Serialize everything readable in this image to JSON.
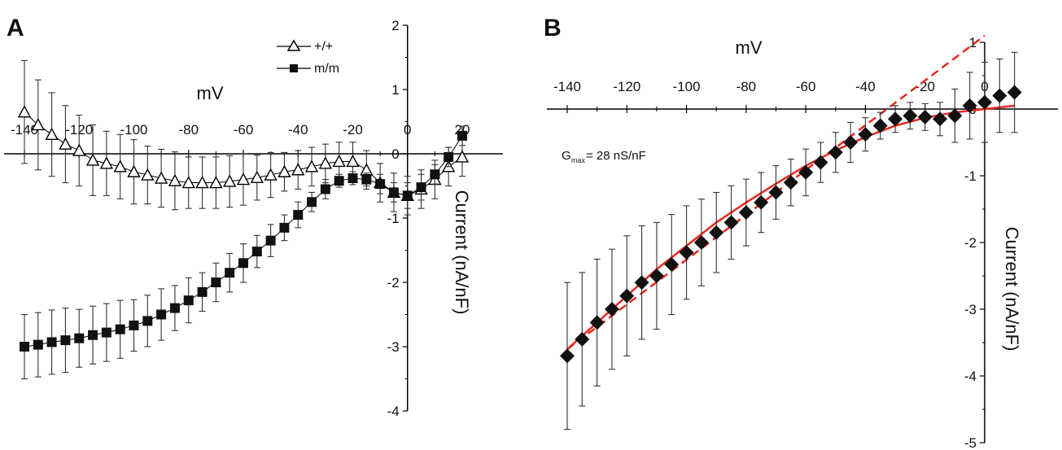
{
  "chart_data": [
    {
      "panel_label": "A",
      "type": "scatter",
      "xlabel": "mV",
      "ylabel": "Current (nA/nF)",
      "xlim": [
        -145,
        25
      ],
      "ylim": [
        -4,
        2
      ],
      "x_ticks": [
        -140,
        -120,
        -100,
        -80,
        -60,
        -40,
        -20,
        0,
        20
      ],
      "x_tick_labels": [
        "-140",
        "-120",
        "-100",
        "-80",
        "-60",
        "-40",
        "-20",
        "0",
        "20"
      ],
      "y_ticks": [
        -4,
        -3,
        -2,
        -1,
        0,
        1,
        2
      ],
      "y_tick_labels": [
        "-4",
        "-3",
        "-2",
        "-1",
        "0",
        "1",
        "2"
      ],
      "legend": "top-center",
      "grid": false,
      "series": [
        {
          "name": "+/+",
          "marker": "open-triangle",
          "color": "#000000",
          "x": [
            -140,
            -135,
            -130,
            -125,
            -120,
            -115,
            -110,
            -105,
            -100,
            -95,
            -90,
            -85,
            -80,
            -75,
            -70,
            -65,
            -60,
            -55,
            -50,
            -45,
            -40,
            -35,
            -30,
            -25,
            -20,
            -15,
            -10,
            -5,
            0,
            5,
            10,
            15,
            20
          ],
          "y": [
            0.65,
            0.45,
            0.3,
            0.15,
            0.05,
            -0.1,
            -0.15,
            -0.2,
            -0.28,
            -0.33,
            -0.38,
            -0.42,
            -0.45,
            -0.45,
            -0.45,
            -0.43,
            -0.4,
            -0.37,
            -0.33,
            -0.28,
            -0.25,
            -0.2,
            -0.15,
            -0.12,
            -0.12,
            -0.25,
            -0.45,
            -0.6,
            -0.65,
            -0.55,
            -0.4,
            -0.2,
            -0.05
          ],
          "err": [
            0.8,
            0.7,
            0.65,
            0.6,
            0.55,
            0.55,
            0.5,
            0.5,
            0.5,
            0.45,
            0.45,
            0.45,
            0.4,
            0.4,
            0.4,
            0.4,
            0.4,
            0.35,
            0.35,
            0.3,
            0.3,
            0.3,
            0.3,
            0.3,
            0.3,
            0.3,
            0.3,
            0.3,
            0.3,
            0.3,
            0.3,
            0.3,
            0.3
          ]
        },
        {
          "name": "m/m",
          "marker": "filled-square",
          "color": "#000000",
          "x": [
            -140,
            -135,
            -130,
            -125,
            -120,
            -115,
            -110,
            -105,
            -100,
            -95,
            -90,
            -85,
            -80,
            -75,
            -70,
            -65,
            -60,
            -55,
            -50,
            -45,
            -40,
            -35,
            -30,
            -25,
            -20,
            -15,
            -10,
            -5,
            0,
            5,
            10,
            15,
            20
          ],
          "y": [
            -3.0,
            -2.97,
            -2.93,
            -2.9,
            -2.87,
            -2.82,
            -2.78,
            -2.73,
            -2.67,
            -2.6,
            -2.5,
            -2.4,
            -2.28,
            -2.15,
            -2.0,
            -1.85,
            -1.7,
            -1.52,
            -1.35,
            -1.15,
            -0.95,
            -0.75,
            -0.55,
            -0.42,
            -0.38,
            -0.4,
            -0.47,
            -0.6,
            -0.65,
            -0.52,
            -0.32,
            -0.05,
            0.28
          ],
          "err": [
            0.5,
            0.5,
            0.5,
            0.5,
            0.45,
            0.45,
            0.45,
            0.45,
            0.4,
            0.4,
            0.4,
            0.35,
            0.35,
            0.3,
            0.3,
            0.3,
            0.3,
            0.25,
            0.25,
            0.2,
            0.2,
            0.15,
            0.15,
            0.1,
            0.1,
            0.1,
            0.15,
            0.15,
            0.2,
            0.2,
            0.15,
            0.15,
            0.15
          ]
        }
      ]
    },
    {
      "panel_label": "B",
      "type": "scatter",
      "xlabel": "mV",
      "ylabel": "Current (nA/nF)",
      "xlim": [
        -145,
        10
      ],
      "ylim": [
        -5,
        1
      ],
      "x_ticks": [
        -140,
        -120,
        -100,
        -80,
        -60,
        -40,
        -20,
        0
      ],
      "x_tick_labels": [
        "-140",
        "-120",
        "-100",
        "-80",
        "-60",
        "-40",
        "-20",
        "0"
      ],
      "y_ticks": [
        -5,
        -4,
        -3,
        -2,
        -1,
        0,
        1
      ],
      "y_tick_labels": [
        "-5",
        "-4",
        "-3",
        "-2",
        "-1",
        "0",
        "1"
      ],
      "grid": false,
      "annotation": {
        "main": "G",
        "sub": "max",
        "rest": " = 28 nS/nF"
      },
      "series": [
        {
          "marker": "filled-diamond",
          "color": "#000000",
          "x": [
            -140,
            -135,
            -130,
            -125,
            -120,
            -115,
            -110,
            -105,
            -100,
            -95,
            -90,
            -85,
            -80,
            -75,
            -70,
            -65,
            -60,
            -55,
            -50,
            -45,
            -40,
            -35,
            -30,
            -25,
            -20,
            -15,
            -10,
            -5,
            0,
            5,
            10
          ],
          "y": [
            -3.7,
            -3.45,
            -3.2,
            -3.0,
            -2.8,
            -2.6,
            -2.5,
            -2.33,
            -2.15,
            -2.0,
            -1.85,
            -1.7,
            -1.55,
            -1.4,
            -1.25,
            -1.1,
            -0.95,
            -0.8,
            -0.65,
            -0.5,
            -0.38,
            -0.25,
            -0.15,
            -0.1,
            -0.12,
            -0.15,
            -0.1,
            0.05,
            0.1,
            0.2,
            0.25
          ],
          "err": [
            1.1,
            1.0,
            0.95,
            0.9,
            0.9,
            0.85,
            0.8,
            0.75,
            0.7,
            0.65,
            0.6,
            0.55,
            0.5,
            0.45,
            0.4,
            0.35,
            0.35,
            0.3,
            0.3,
            0.3,
            0.25,
            0.2,
            0.2,
            0.2,
            0.2,
            0.25,
            0.4,
            0.5,
            0.6,
            0.55,
            0.6
          ]
        }
      ],
      "fits": [
        {
          "style": "solid",
          "color": "#e8281e",
          "x": [
            -140,
            -130,
            -120,
            -110,
            -100,
            -90,
            -80,
            -70,
            -60,
            -50,
            -40,
            -30,
            -20,
            -10,
            0,
            10
          ],
          "y": [
            -3.6,
            -3.2,
            -2.8,
            -2.4,
            -2.05,
            -1.7,
            -1.4,
            -1.12,
            -0.85,
            -0.62,
            -0.42,
            -0.25,
            -0.13,
            -0.05,
            0.0,
            0.05
          ]
        },
        {
          "style": "dashed",
          "color": "#e8281e",
          "x": [
            -140,
            0
          ],
          "y": [
            -3.6,
            1.1
          ]
        }
      ]
    }
  ]
}
